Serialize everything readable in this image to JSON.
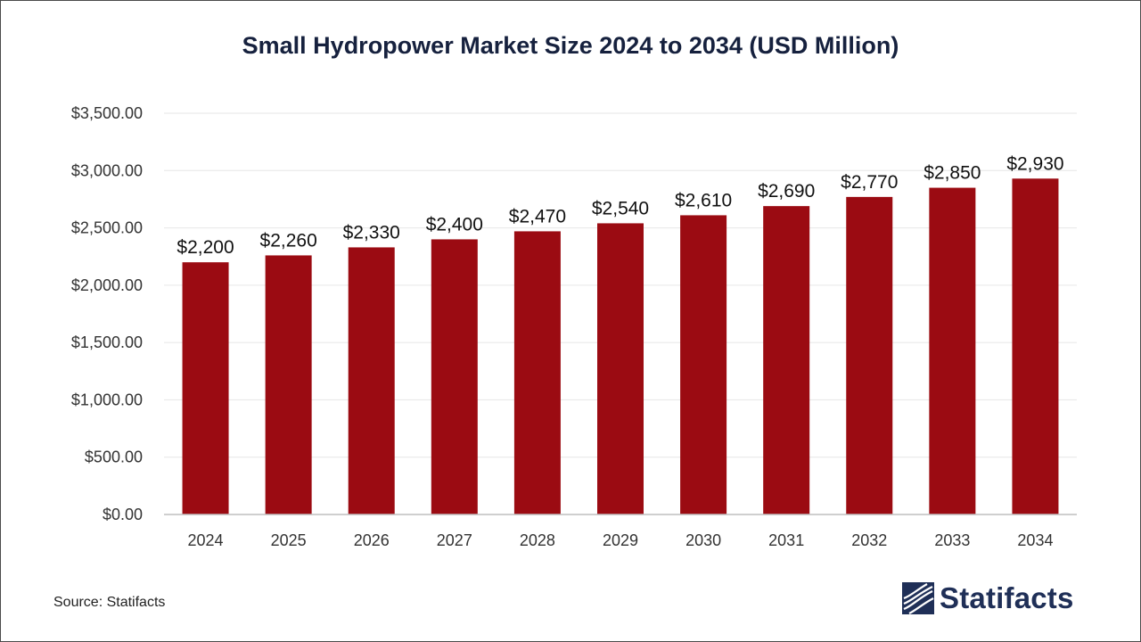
{
  "chart_data": {
    "type": "bar",
    "title": "Small Hydropower Market Size 2024 to 2034 (USD Million)",
    "categories": [
      "2024",
      "2025",
      "2026",
      "2027",
      "2028",
      "2029",
      "2030",
      "2031",
      "2032",
      "2033",
      "2034"
    ],
    "values": [
      2200,
      2260,
      2330,
      2400,
      2470,
      2540,
      2610,
      2690,
      2770,
      2850,
      2930
    ],
    "data_labels": [
      "$2,200",
      "$2,260",
      "$2,330",
      "$2,400",
      "$2,470",
      "$2,540",
      "$2,610",
      "$2,690",
      "$2,770",
      "$2,850",
      "$2,930"
    ],
    "y_ticks": [
      0,
      500,
      1000,
      1500,
      2000,
      2500,
      3000,
      3500
    ],
    "y_tick_labels": [
      "$0.00",
      "$500.00",
      "$1,000.00",
      "$1,500.00",
      "$2,000.00",
      "$2,500.00",
      "$3,000.00",
      "$3,500.00"
    ],
    "ylim": [
      0,
      3500
    ],
    "xlabel": "",
    "ylabel": "",
    "grid": true,
    "legend": "none",
    "bar_color": "#9b0b12"
  },
  "footer": {
    "source": "Source: Statifacts",
    "brand": "Statifacts",
    "brand_color": "#1f2f57"
  }
}
